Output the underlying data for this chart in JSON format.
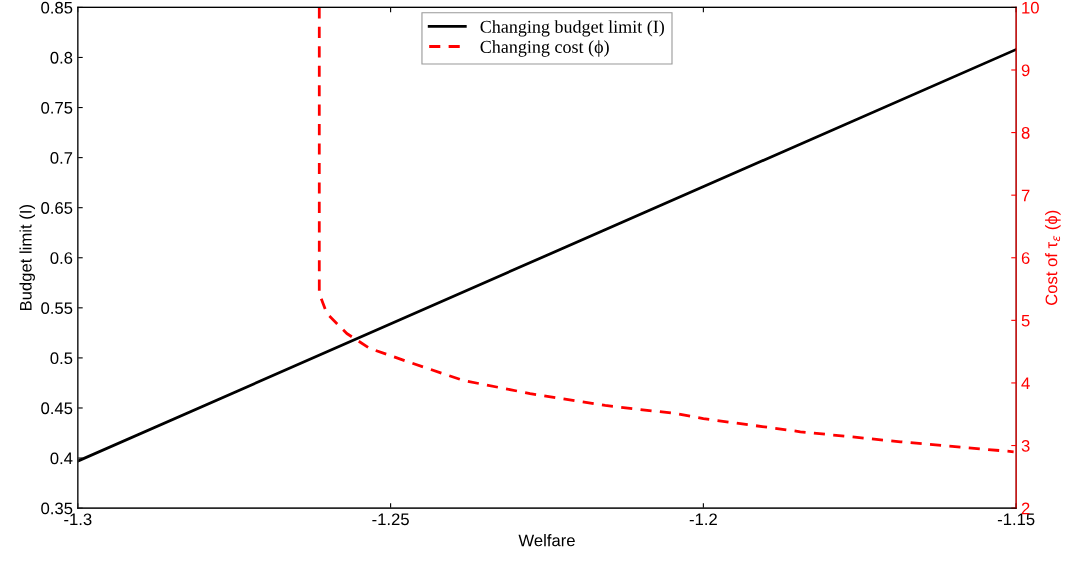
{
  "chart_data": {
    "type": "line",
    "xlabel": "Welfare",
    "ylabel": "Budget limit (I)",
    "y2label": "Cost of τ$_{ε}$ (ϕ)",
    "xlim": [
      -1.3,
      -1.15
    ],
    "xticks": [
      -1.3,
      -1.25,
      -1.2,
      -1.15
    ],
    "ylim": [
      0.35,
      0.85
    ],
    "yticks": [
      0.35,
      0.4,
      0.45,
      0.5,
      0.55,
      0.6,
      0.65,
      0.7,
      0.75,
      0.8,
      0.85
    ],
    "y2lim": [
      2,
      10
    ],
    "y2ticks": [
      2,
      3,
      4,
      5,
      6,
      7,
      8,
      9,
      10
    ],
    "grid": false,
    "legend": "top",
    "marker": "none",
    "series": [
      {
        "name": "Changing budget limit (I)",
        "color": "#000000",
        "line_style": "solid",
        "x": [
          -1.3,
          -1.15
        ],
        "values": [
          0.397,
          0.808
        ]
      },
      {
        "name": "Changing cost (ϕ)",
        "color": "#ff0000",
        "line_style": "dashed",
        "axis": "y2",
        "x": [
          -1.2614,
          -1.2614,
          -1.2602,
          -1.257,
          -1.2533,
          -1.2464,
          -1.2384,
          -1.2277,
          -1.2157,
          -1.2043,
          -1.2,
          -1.1845,
          -1.1685,
          -1.1504
        ],
        "values": [
          10,
          5.43,
          5.11,
          4.79,
          4.55,
          4.31,
          4.04,
          3.83,
          3.64,
          3.51,
          3.43,
          3.22,
          3.06,
          2.9
        ]
      }
    ]
  }
}
